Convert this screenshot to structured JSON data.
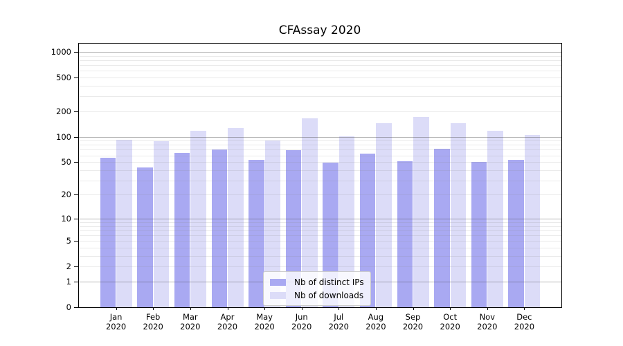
{
  "chart_data": {
    "type": "bar",
    "title": "CFAssay 2020",
    "scale": "log1p",
    "grid": true,
    "legend_position": "lower center",
    "categories": [
      "Jan",
      "Feb",
      "Mar",
      "Apr",
      "May",
      "Jun",
      "Jul",
      "Aug",
      "Sep",
      "Oct",
      "Nov",
      "Dec"
    ],
    "x_year_label": "2020",
    "series": [
      {
        "name": "Nb of distinct IPs",
        "color": "#a9a9f2",
        "values": [
          56,
          43,
          64,
          70,
          53,
          69,
          49,
          63,
          51,
          72,
          50,
          53
        ]
      },
      {
        "name": "Nb of downloads",
        "color": "#dcdcf8",
        "values": [
          92,
          88,
          117,
          128,
          90,
          166,
          102,
          146,
          172,
          146,
          118,
          105
        ]
      }
    ],
    "y_ticks": [
      0,
      1,
      2,
      5,
      10,
      20,
      50,
      100,
      200,
      500,
      1000
    ],
    "y_major_gridlines": [
      1,
      10,
      100,
      1000
    ],
    "y_minor_gridlines": [
      2,
      3,
      4,
      5,
      6,
      7,
      8,
      9,
      20,
      30,
      40,
      50,
      60,
      70,
      80,
      90,
      200,
      300,
      400,
      500,
      600,
      700,
      800,
      900
    ],
    "ylim": [
      0,
      1254
    ],
    "xlabel": "",
    "ylabel": ""
  },
  "colors": {
    "distinct_ips_bar": "#a9a9f2",
    "downloads_bar": "#dcdcf8",
    "major_grid": "#b0b0b0",
    "minor_grid": "#e8e8e8",
    "axis": "#000000",
    "background": "#ffffff"
  }
}
